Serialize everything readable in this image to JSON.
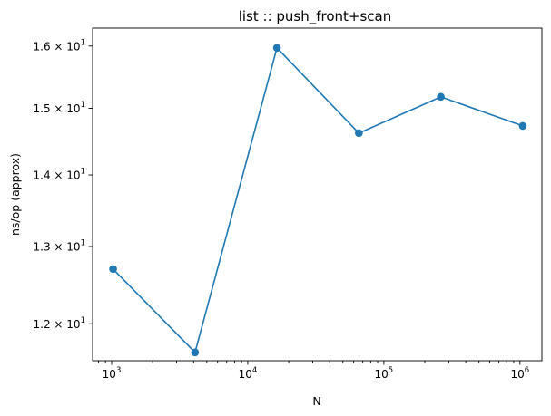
{
  "chart_data": {
    "type": "line",
    "title": "list :: push_front+scan",
    "xlabel": "N",
    "ylabel": "ns/op (approx)",
    "xscale": "log",
    "yscale": "log",
    "xlim": [
      724,
      1450000
    ],
    "ylim": [
      11.55,
      16.3
    ],
    "grid": false,
    "color": "#1f77b4",
    "marker": "circle",
    "x": [
      1024,
      4096,
      16384,
      65536,
      262144,
      1048576
    ],
    "y": [
      12.7,
      11.65,
      15.97,
      14.62,
      15.18,
      14.73
    ],
    "xticks": [
      {
        "value": 1000,
        "base": "10",
        "exp": "3"
      },
      {
        "value": 10000,
        "base": "10",
        "exp": "4"
      },
      {
        "value": 100000,
        "base": "10",
        "exp": "5"
      },
      {
        "value": 1000000,
        "base": "10",
        "exp": "6"
      }
    ],
    "yticks": [
      {
        "value": 12,
        "mant": "1.2",
        "base": "10",
        "exp": "1"
      },
      {
        "value": 13,
        "mant": "1.3",
        "base": "10",
        "exp": "1"
      },
      {
        "value": 14,
        "mant": "1.4",
        "base": "10",
        "exp": "1"
      },
      {
        "value": 15,
        "mant": "1.5",
        "base": "10",
        "exp": "1"
      },
      {
        "value": 16,
        "mant": "1.6",
        "base": "10",
        "exp": "1"
      }
    ]
  }
}
